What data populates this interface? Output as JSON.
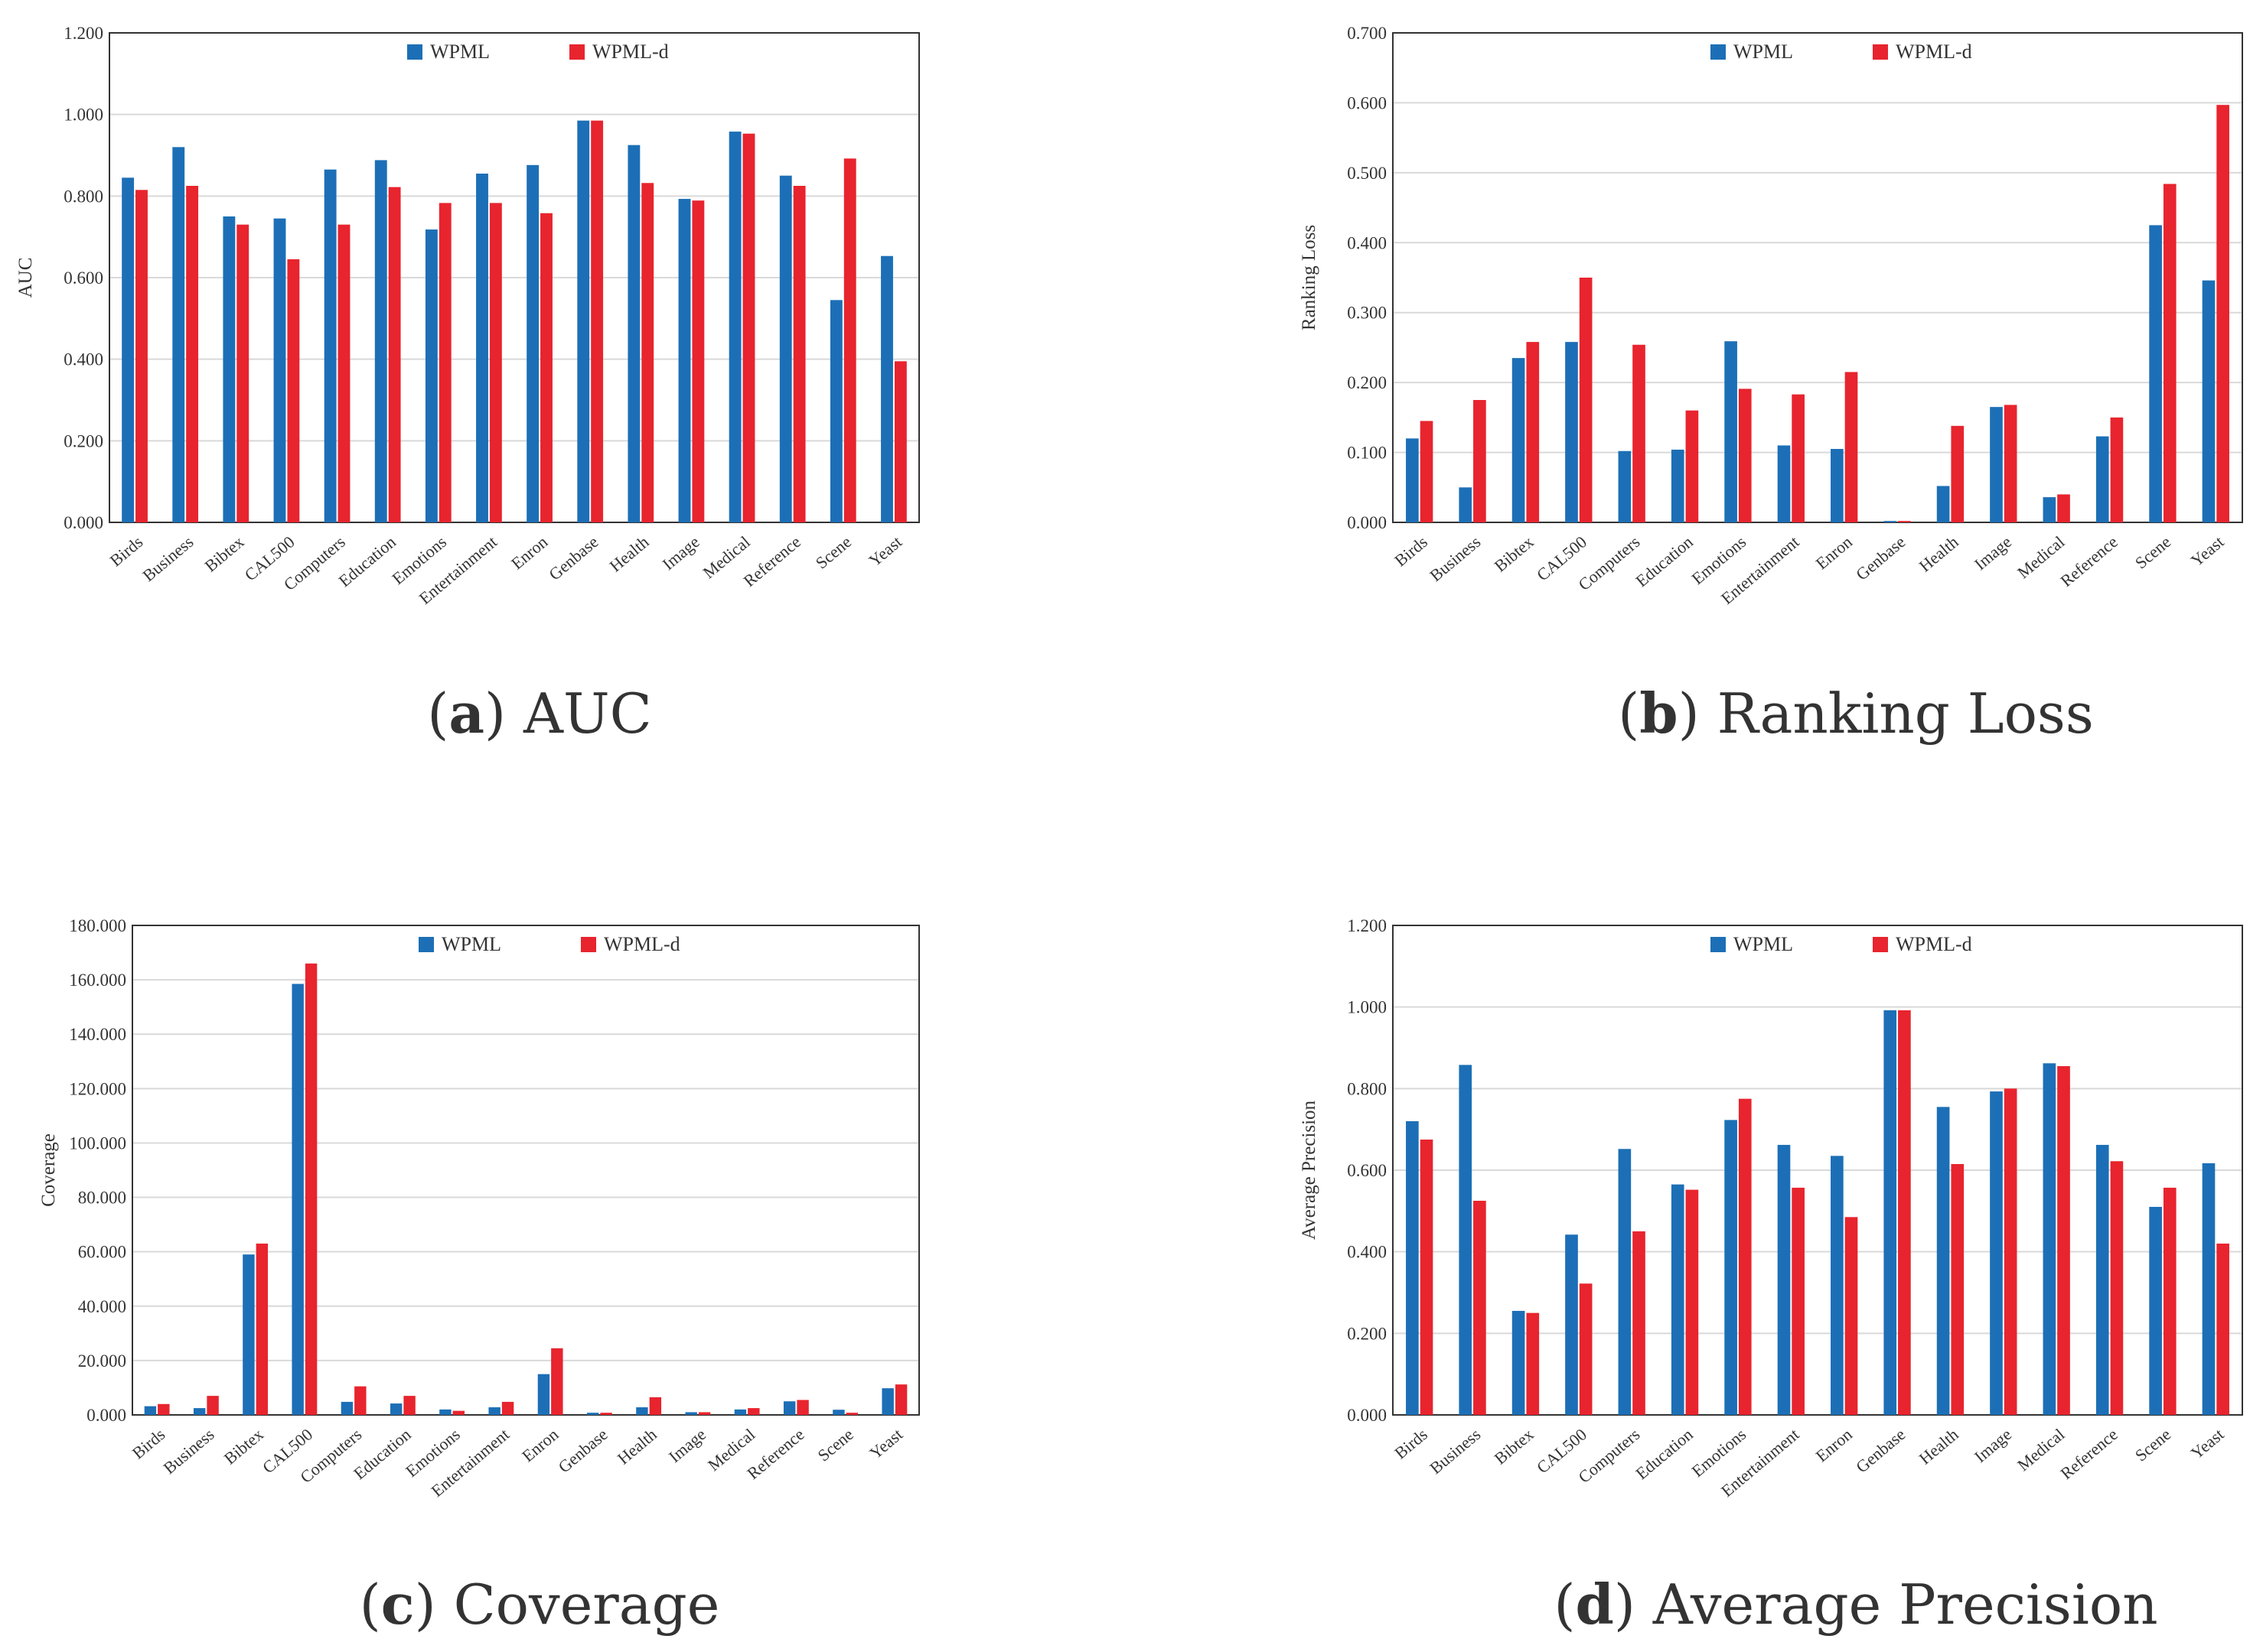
{
  "colors": {
    "wpml": "#1c6fb6",
    "wpml_d": "#e8242e",
    "grid": "#d9d9d9",
    "axis": "#333333"
  },
  "chart_data": [
    {
      "type": "bar",
      "panel_letter": "a",
      "caption": "AUC",
      "title": "",
      "xlabel": "",
      "ylabel": "AUC",
      "ylim": [
        0,
        1.2
      ],
      "yticks": [
        "0.000",
        "0.200",
        "0.400",
        "0.600",
        "0.800",
        "1.000",
        "1.200"
      ],
      "grid": true,
      "legend": "top",
      "categories": [
        "Birds",
        "Business",
        "Bibtex",
        "CAL500",
        "Computers",
        "Education",
        "Emotions",
        "Entertainment",
        "Enron",
        "Genbase",
        "Health",
        "Image",
        "Medical",
        "Reference",
        "Scene",
        "Yeast"
      ],
      "series": [
        {
          "name": "WPML",
          "values": [
            0.845,
            0.92,
            0.75,
            0.745,
            0.865,
            0.888,
            0.718,
            0.855,
            0.876,
            0.985,
            0.925,
            0.793,
            0.958,
            0.85,
            0.545,
            0.653
          ]
        },
        {
          "name": "WPML-d",
          "values": [
            0.815,
            0.825,
            0.73,
            0.645,
            0.73,
            0.822,
            0.783,
            0.783,
            0.758,
            0.985,
            0.832,
            0.789,
            0.953,
            0.825,
            0.892,
            0.395
          ]
        }
      ]
    },
    {
      "type": "bar",
      "panel_letter": "b",
      "caption": "Ranking Loss",
      "title": "",
      "xlabel": "",
      "ylabel": "Ranking Loss",
      "ylim": [
        0,
        0.7
      ],
      "yticks": [
        "0.000",
        "0.100",
        "0.200",
        "0.300",
        "0.400",
        "0.500",
        "0.600",
        "0.700"
      ],
      "grid": true,
      "legend": "top",
      "categories": [
        "Birds",
        "Business",
        "Bibtex",
        "CAL500",
        "Computers",
        "Education",
        "Emotions",
        "Entertainment",
        "Enron",
        "Genbase",
        "Health",
        "Image",
        "Medical",
        "Reference",
        "Scene",
        "Yeast"
      ],
      "series": [
        {
          "name": "WPML",
          "values": [
            0.12,
            0.05,
            0.235,
            0.258,
            0.102,
            0.104,
            0.259,
            0.11,
            0.105,
            0.002,
            0.052,
            0.165,
            0.036,
            0.123,
            0.425,
            0.346
          ]
        },
        {
          "name": "WPML-d",
          "values": [
            0.145,
            0.175,
            0.258,
            0.35,
            0.254,
            0.16,
            0.191,
            0.183,
            0.215,
            0.002,
            0.138,
            0.168,
            0.04,
            0.15,
            0.484,
            0.597
          ]
        }
      ]
    },
    {
      "type": "bar",
      "panel_letter": "c",
      "caption": "Coverage",
      "title": "",
      "xlabel": "",
      "ylabel": "Coverage",
      "ylim": [
        0,
        180
      ],
      "yticks": [
        "0.000",
        "20.000",
        "40.000",
        "60.000",
        "80.000",
        "100.000",
        "120.000",
        "140.000",
        "160.000",
        "180.000"
      ],
      "grid": true,
      "legend": "top",
      "categories": [
        "Birds",
        "Business",
        "Bibtex",
        "CAL500",
        "Computers",
        "Education",
        "Emotions",
        "Entertainment",
        "Enron",
        "Genbase",
        "Health",
        "Image",
        "Medical",
        "Reference",
        "Scene",
        "Yeast"
      ],
      "series": [
        {
          "name": "WPML",
          "values": [
            3.2,
            2.5,
            59.0,
            158.5,
            4.8,
            4.2,
            2.0,
            2.8,
            15.0,
            0.8,
            2.8,
            1.0,
            2.0,
            5.0,
            1.9,
            9.8
          ]
        },
        {
          "name": "WPML-d",
          "values": [
            4.0,
            7.0,
            63.0,
            166.0,
            10.5,
            7.0,
            1.5,
            4.8,
            24.5,
            0.8,
            6.5,
            1.0,
            2.5,
            5.5,
            0.8,
            11.2
          ]
        }
      ]
    },
    {
      "type": "bar",
      "panel_letter": "d",
      "caption": "Average Precision",
      "title": "",
      "xlabel": "",
      "ylabel": "Average Precision",
      "ylim": [
        0,
        1.2
      ],
      "yticks": [
        "0.000",
        "0.200",
        "0.400",
        "0.600",
        "0.800",
        "1.000",
        "1.200"
      ],
      "grid": true,
      "legend": "top",
      "categories": [
        "Birds",
        "Business",
        "Bibtex",
        "CAL500",
        "Computers",
        "Education",
        "Emotions",
        "Entertainment",
        "Enron",
        "Genbase",
        "Health",
        "Image",
        "Medical",
        "Reference",
        "Scene",
        "Yeast"
      ],
      "series": [
        {
          "name": "WPML",
          "values": [
            0.72,
            0.858,
            0.255,
            0.442,
            0.652,
            0.565,
            0.723,
            0.662,
            0.635,
            0.992,
            0.755,
            0.793,
            0.862,
            0.662,
            0.51,
            0.617
          ]
        },
        {
          "name": "WPML-d",
          "values": [
            0.675,
            0.525,
            0.25,
            0.322,
            0.45,
            0.552,
            0.775,
            0.557,
            0.485,
            0.992,
            0.615,
            0.8,
            0.855,
            0.622,
            0.557,
            0.42
          ]
        }
      ]
    }
  ]
}
